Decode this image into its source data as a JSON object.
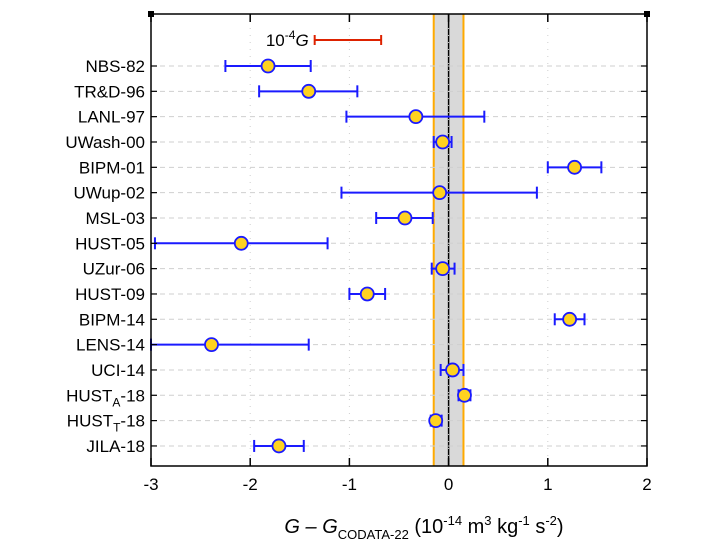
{
  "chart_data": {
    "type": "scatter",
    "title": "",
    "xlim": [
      -3,
      2
    ],
    "xticks": [
      -3,
      -2,
      -1,
      0,
      1,
      2
    ],
    "xtick_labels": [
      "-3",
      "-2",
      "-1",
      "0",
      "1",
      "2"
    ],
    "xlabel": {
      "main": "G – G",
      "sub": "CODATA-22",
      "open": " (10",
      "exp1": "-14",
      "m": " m",
      "exp2": "3",
      "kg": " kg",
      "exp3": "-1",
      "s": " s",
      "exp4": "-2",
      "close": ")"
    },
    "points": [
      {
        "label": "NBS-82",
        "x": -1.82,
        "err_lo": -2.25,
        "err_hi": -1.39
      },
      {
        "label": "TR&D-96",
        "x": -1.41,
        "err_lo": -1.91,
        "err_hi": -0.92
      },
      {
        "label": "LANL-97",
        "x": -0.33,
        "err_lo": -1.03,
        "err_hi": 0.36
      },
      {
        "label": "UWash-00",
        "x": -0.06,
        "err_lo": -0.15,
        "err_hi": 0.03
      },
      {
        "label": "BIPM-01",
        "x": 1.27,
        "err_lo": 1.0,
        "err_hi": 1.54
      },
      {
        "label": "UWup-02",
        "x": -0.09,
        "err_lo": -1.08,
        "err_hi": 0.89
      },
      {
        "label": "MSL-03",
        "x": -0.44,
        "err_lo": -0.73,
        "err_hi": -0.16
      },
      {
        "label": "HUST-05",
        "x": -2.09,
        "err_lo": -2.96,
        "err_hi": -1.22
      },
      {
        "label": "UZur-06",
        "x": -0.06,
        "err_lo": -0.17,
        "err_hi": 0.06
      },
      {
        "label": "HUST-09",
        "x": -0.82,
        "err_lo": -1.0,
        "err_hi": -0.64
      },
      {
        "label": "BIPM-14",
        "x": 1.22,
        "err_lo": 1.07,
        "err_hi": 1.37
      },
      {
        "label": "LENS-14",
        "x": -2.39,
        "err_lo": -3.0,
        "err_hi": -1.41
      },
      {
        "label": "UCI-14",
        "x": 0.04,
        "err_lo": -0.08,
        "err_hi": 0.15
      },
      {
        "label": "HUST",
        "label_sub": "A",
        "label_suffix": "-18",
        "x": 0.16,
        "err_lo": 0.1,
        "err_hi": 0.22
      },
      {
        "label": "HUST",
        "label_sub": "T",
        "label_suffix": "-18",
        "x": -0.13,
        "err_lo": -0.18,
        "err_hi": -0.07
      },
      {
        "label": "JILA-18",
        "x": -1.71,
        "err_lo": -1.96,
        "err_hi": -1.46
      }
    ],
    "codata_band": {
      "center": 0.0,
      "inner_halfwidth": 0.15,
      "gray_halfwidth": 0.15
    },
    "scale_bar": {
      "text": "10",
      "exp": "-4",
      "symbol": "G",
      "x_start": -1.35,
      "x_end": -0.68
    },
    "colors": {
      "errorbar": "#1a1aff",
      "marker_fill": "#ffd21f",
      "marker_edge": "#1a1aff",
      "band_line": "#ffaa00",
      "band_fill": "#d9d9d9",
      "center_line": "#000000",
      "scale_bar": "#dd2200",
      "grid": "#cfcfcf"
    }
  }
}
